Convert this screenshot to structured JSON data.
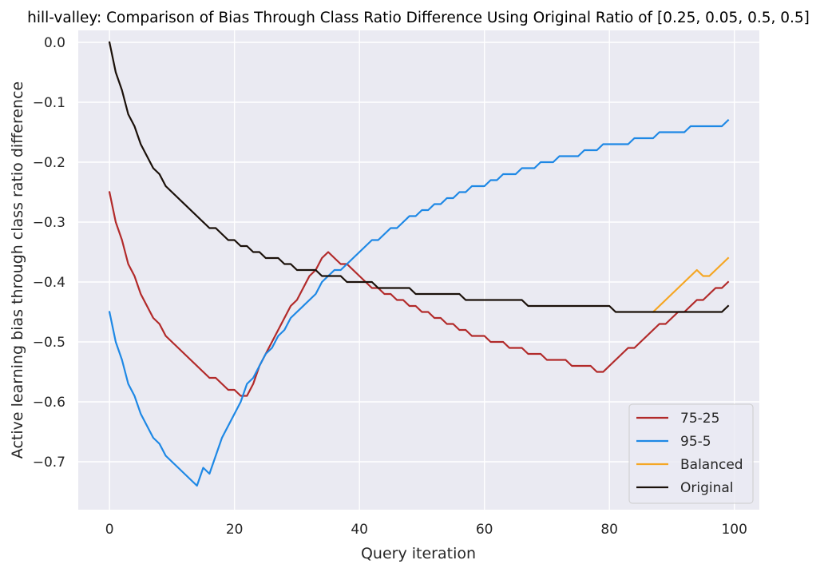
{
  "chart_data": {
    "type": "line",
    "title": "hill-valley: Comparison of Bias Through Class Ratio Difference Using Original Ratio of [0.25, 0.05, 0.5, 0.5]",
    "xlabel": "Query iteration",
    "ylabel": "Active learning bias through class ratio difference",
    "xlim": [
      -5,
      104
    ],
    "ylim": [
      -0.78,
      0.02
    ],
    "xticks": [
      0,
      20,
      40,
      60,
      80,
      100
    ],
    "yticks": [
      0.0,
      -0.1,
      -0.2,
      -0.3,
      -0.4,
      -0.5,
      -0.6,
      -0.7
    ],
    "xtick_labels": [
      "0",
      "20",
      "40",
      "60",
      "80",
      "100"
    ],
    "ytick_labels": [
      "0.0",
      "−0.1",
      "−0.2",
      "−0.3",
      "−0.4",
      "−0.5",
      "−0.6",
      "−0.7"
    ],
    "grid": true,
    "legend_position": "lower-right",
    "series": [
      {
        "name": "75-25",
        "color": "#b22a2a",
        "points": [
          [
            0,
            -0.25
          ],
          [
            1,
            -0.3
          ],
          [
            2,
            -0.33
          ],
          [
            3,
            -0.37
          ],
          [
            4,
            -0.39
          ],
          [
            5,
            -0.42
          ],
          [
            6,
            -0.44
          ],
          [
            7,
            -0.46
          ],
          [
            8,
            -0.47
          ],
          [
            9,
            -0.49
          ],
          [
            16,
            -0.56
          ],
          [
            17,
            -0.56
          ],
          [
            19,
            -0.58
          ],
          [
            20,
            -0.58
          ],
          [
            21,
            -0.59
          ],
          [
            22,
            -0.59
          ],
          [
            23,
            -0.57
          ],
          [
            24,
            -0.54
          ],
          [
            25,
            -0.52
          ],
          [
            26,
            -0.5
          ],
          [
            27,
            -0.48
          ],
          [
            28,
            -0.46
          ],
          [
            29,
            -0.44
          ],
          [
            30,
            -0.43
          ],
          [
            31,
            -0.41
          ],
          [
            32,
            -0.39
          ],
          [
            33,
            -0.38
          ],
          [
            34,
            -0.36
          ],
          [
            35,
            -0.35
          ],
          [
            37,
            -0.37
          ],
          [
            38,
            -0.37
          ],
          [
            39,
            -0.38
          ],
          [
            40,
            -0.39
          ],
          [
            41,
            -0.4
          ],
          [
            42,
            -0.41
          ],
          [
            43,
            -0.41
          ],
          [
            44,
            -0.42
          ],
          [
            45,
            -0.42
          ],
          [
            46,
            -0.43
          ],
          [
            47,
            -0.43
          ],
          [
            48,
            -0.44
          ],
          [
            49,
            -0.44
          ],
          [
            50,
            -0.45
          ],
          [
            51,
            -0.45
          ],
          [
            52,
            -0.46
          ],
          [
            53,
            -0.46
          ],
          [
            54,
            -0.47
          ],
          [
            55,
            -0.47
          ],
          [
            56,
            -0.48
          ],
          [
            57,
            -0.48
          ],
          [
            58,
            -0.49
          ],
          [
            60,
            -0.49
          ],
          [
            61,
            -0.5
          ],
          [
            63,
            -0.5
          ],
          [
            64,
            -0.51
          ],
          [
            66,
            -0.51
          ],
          [
            67,
            -0.52
          ],
          [
            69,
            -0.52
          ],
          [
            70,
            -0.53
          ],
          [
            73,
            -0.53
          ],
          [
            74,
            -0.54
          ],
          [
            77,
            -0.54
          ],
          [
            78,
            -0.55
          ],
          [
            79,
            -0.55
          ],
          [
            80,
            -0.54
          ],
          [
            81,
            -0.53
          ],
          [
            82,
            -0.52
          ],
          [
            83,
            -0.51
          ],
          [
            84,
            -0.51
          ],
          [
            85,
            -0.5
          ],
          [
            86,
            -0.49
          ],
          [
            87,
            -0.48
          ],
          [
            88,
            -0.47
          ],
          [
            89,
            -0.47
          ],
          [
            90,
            -0.46
          ],
          [
            91,
            -0.45
          ],
          [
            92,
            -0.45
          ],
          [
            93,
            -0.44
          ],
          [
            94,
            -0.43
          ],
          [
            95,
            -0.43
          ],
          [
            96,
            -0.42
          ],
          [
            97,
            -0.41
          ],
          [
            98,
            -0.41
          ],
          [
            99,
            -0.4
          ]
        ]
      },
      {
        "name": "95-5",
        "color": "#1e88e5",
        "points": [
          [
            0,
            -0.45
          ],
          [
            1,
            -0.5
          ],
          [
            2,
            -0.53
          ],
          [
            3,
            -0.57
          ],
          [
            4,
            -0.59
          ],
          [
            5,
            -0.62
          ],
          [
            6,
            -0.64
          ],
          [
            7,
            -0.66
          ],
          [
            8,
            -0.67
          ],
          [
            9,
            -0.69
          ],
          [
            14,
            -0.74
          ],
          [
            15,
            -0.71
          ],
          [
            16,
            -0.72
          ],
          [
            18,
            -0.66
          ],
          [
            20,
            -0.62
          ],
          [
            21,
            -0.6
          ],
          [
            22,
            -0.57
          ],
          [
            23,
            -0.56
          ],
          [
            24,
            -0.54
          ],
          [
            25,
            -0.52
          ],
          [
            26,
            -0.51
          ],
          [
            27,
            -0.49
          ],
          [
            28,
            -0.48
          ],
          [
            29,
            -0.46
          ],
          [
            33,
            -0.42
          ],
          [
            34,
            -0.4
          ],
          [
            35,
            -0.39
          ],
          [
            36,
            -0.38
          ],
          [
            37,
            -0.38
          ],
          [
            38,
            -0.37
          ],
          [
            39,
            -0.36
          ],
          [
            40,
            -0.35
          ],
          [
            41,
            -0.34
          ],
          [
            42,
            -0.33
          ],
          [
            43,
            -0.33
          ],
          [
            44,
            -0.32
          ],
          [
            45,
            -0.31
          ],
          [
            46,
            -0.31
          ],
          [
            47,
            -0.3
          ],
          [
            48,
            -0.29
          ],
          [
            49,
            -0.29
          ],
          [
            50,
            -0.28
          ],
          [
            51,
            -0.28
          ],
          [
            52,
            -0.27
          ],
          [
            53,
            -0.27
          ],
          [
            54,
            -0.26
          ],
          [
            55,
            -0.26
          ],
          [
            56,
            -0.25
          ],
          [
            57,
            -0.25
          ],
          [
            58,
            -0.24
          ],
          [
            60,
            -0.24
          ],
          [
            61,
            -0.23
          ],
          [
            62,
            -0.23
          ],
          [
            63,
            -0.22
          ],
          [
            65,
            -0.22
          ],
          [
            66,
            -0.21
          ],
          [
            68,
            -0.21
          ],
          [
            69,
            -0.2
          ],
          [
            71,
            -0.2
          ],
          [
            72,
            -0.19
          ],
          [
            75,
            -0.19
          ],
          [
            76,
            -0.18
          ],
          [
            78,
            -0.18
          ],
          [
            79,
            -0.17
          ],
          [
            83,
            -0.17
          ],
          [
            84,
            -0.16
          ],
          [
            87,
            -0.16
          ],
          [
            88,
            -0.15
          ],
          [
            92,
            -0.15
          ],
          [
            93,
            -0.14
          ],
          [
            98,
            -0.14
          ],
          [
            99,
            -0.13
          ]
        ]
      },
      {
        "name": "Balanced",
        "color": "#f5a623",
        "points": [
          [
            87,
            -0.45
          ],
          [
            88,
            -0.44
          ],
          [
            89,
            -0.43
          ],
          [
            90,
            -0.42
          ],
          [
            91,
            -0.41
          ],
          [
            92,
            -0.4
          ],
          [
            93,
            -0.39
          ],
          [
            94,
            -0.38
          ],
          [
            95,
            -0.39
          ],
          [
            96,
            -0.39
          ],
          [
            97,
            -0.38
          ],
          [
            98,
            -0.37
          ],
          [
            99,
            -0.36
          ]
        ]
      },
      {
        "name": "Original",
        "color": "#1a1009",
        "points": [
          [
            0,
            0.0
          ],
          [
            1,
            -0.05
          ],
          [
            2,
            -0.08
          ],
          [
            3,
            -0.12
          ],
          [
            4,
            -0.14
          ],
          [
            5,
            -0.17
          ],
          [
            6,
            -0.19
          ],
          [
            7,
            -0.21
          ],
          [
            8,
            -0.22
          ],
          [
            9,
            -0.24
          ],
          [
            16,
            -0.31
          ],
          [
            17,
            -0.31
          ],
          [
            19,
            -0.33
          ],
          [
            20,
            -0.33
          ],
          [
            21,
            -0.34
          ],
          [
            22,
            -0.34
          ],
          [
            23,
            -0.35
          ],
          [
            24,
            -0.35
          ],
          [
            25,
            -0.36
          ],
          [
            27,
            -0.36
          ],
          [
            28,
            -0.37
          ],
          [
            29,
            -0.37
          ],
          [
            30,
            -0.38
          ],
          [
            33,
            -0.38
          ],
          [
            34,
            -0.39
          ],
          [
            37,
            -0.39
          ],
          [
            38,
            -0.4
          ],
          [
            42,
            -0.4
          ],
          [
            43,
            -0.41
          ],
          [
            48,
            -0.41
          ],
          [
            49,
            -0.42
          ],
          [
            56,
            -0.42
          ],
          [
            57,
            -0.43
          ],
          [
            66,
            -0.43
          ],
          [
            67,
            -0.44
          ],
          [
            80,
            -0.44
          ],
          [
            81,
            -0.45
          ],
          [
            98,
            -0.45
          ],
          [
            99,
            -0.44
          ]
        ]
      }
    ]
  }
}
